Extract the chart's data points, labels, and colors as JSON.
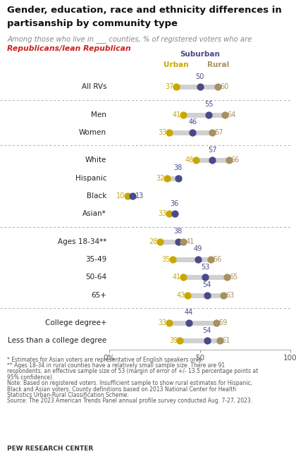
{
  "title_line1": "Gender, education, race and ethnicity differences in",
  "title_line2": "partisanship by community type",
  "subtitle_gray": "Among those who live in ___ counties, % of registered voters who are",
  "subtitle_red": "Republicans/lean Republican",
  "rows": [
    {
      "label": "All RVs",
      "urban": 37,
      "suburban": 50,
      "rural": 60,
      "group": 0
    },
    {
      "label": "Men",
      "urban": 41,
      "suburban": 55,
      "rural": 64,
      "group": 1
    },
    {
      "label": "Women",
      "urban": 33,
      "suburban": 46,
      "rural": 57,
      "group": 1
    },
    {
      "label": "White",
      "urban": 48,
      "suburban": 57,
      "rural": 66,
      "group": 2
    },
    {
      "label": "Hispanic",
      "urban": 32,
      "suburban": 38,
      "rural": null,
      "group": 2
    },
    {
      "label": "Black",
      "urban": 10,
      "suburban": 13,
      "rural": null,
      "group": 2
    },
    {
      "label": "Asian*",
      "urban": 33,
      "suburban": 36,
      "rural": null,
      "group": 2
    },
    {
      "label": "Ages 18-34**",
      "urban": 28,
      "suburban": 38,
      "rural": 41,
      "group": 3
    },
    {
      "label": "35-49",
      "urban": 35,
      "suburban": 49,
      "rural": 56,
      "group": 3
    },
    {
      "label": "50-64",
      "urban": 41,
      "suburban": 53,
      "rural": 65,
      "group": 3
    },
    {
      "label": "65+",
      "urban": 43,
      "suburban": 54,
      "rural": 63,
      "group": 3
    },
    {
      "label": "College degree+",
      "urban": 33,
      "suburban": 44,
      "rural": 59,
      "group": 4
    },
    {
      "label": "Less than a college degree",
      "urban": 39,
      "suburban": 54,
      "rural": 61,
      "group": 4
    }
  ],
  "footnote_lines": [
    "* Estimates for Asian voters are representative of English speakers only.",
    "** Ages 18-34 in rural counties have a relatively small sample size. There are 91",
    "respondents, an effective sample size of 53 (margin of error of +/- 13.5 percentage points at",
    "95% confidence).",
    "Note: Based on registered voters. Insufficient sample to show rural estimates for Hispanic,",
    "Black and Asian voters. County definitions based on 2013 National Center for Health",
    "Statistics Urban-Rural Classification Scheme.",
    "Source: The 2023 American Trends Panel annual profile survey conducted Aug. 7-27, 2023."
  ],
  "pew_credit": "PEW RESEARCH CENTER",
  "urban_color": "#C8A800",
  "suburban_color": "#4A4A8A",
  "rural_color": "#A89060",
  "line_color": "#D0D0D0",
  "sep_color": "#AAAAAA",
  "xmin": 0,
  "xmax": 100
}
